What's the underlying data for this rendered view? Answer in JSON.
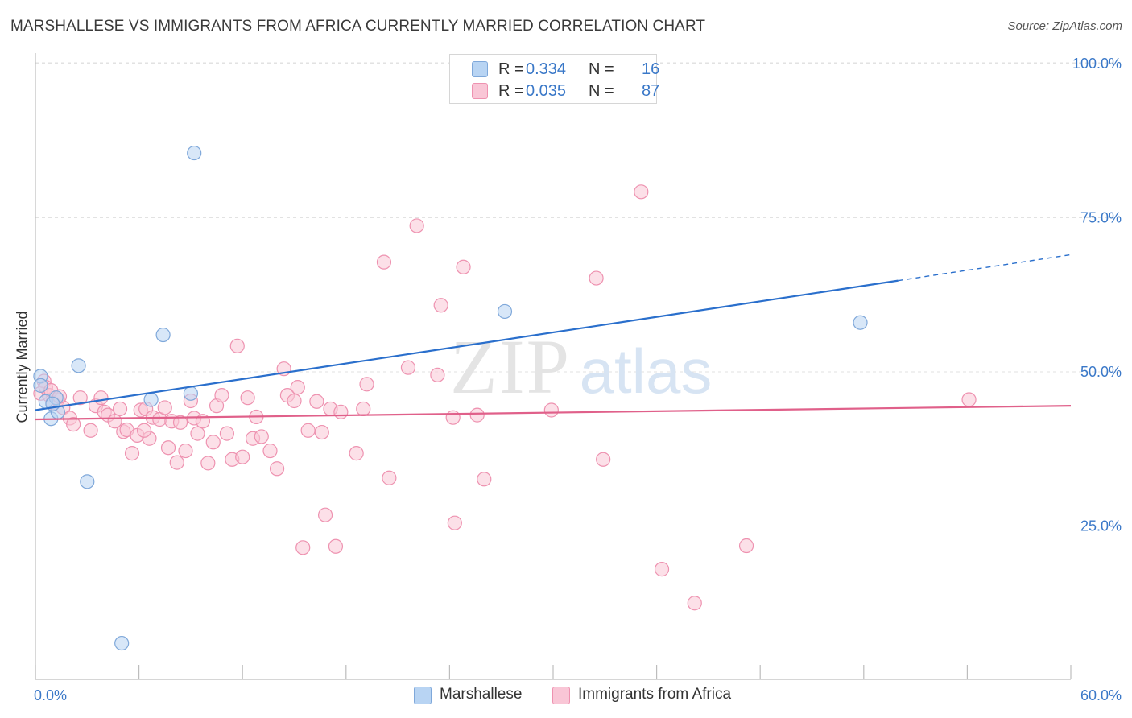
{
  "title": "MARSHALLESE VS IMMIGRANTS FROM AFRICA CURRENTLY MARRIED CORRELATION CHART",
  "source": "Source: ZipAtlas.com",
  "watermark": {
    "zip": "ZIP",
    "atlas": "atlas"
  },
  "legend": {
    "rows": [
      {
        "r_label": "R =",
        "r_value": "0.334",
        "n_label": "N =",
        "n_value": "16"
      },
      {
        "r_label": "R =",
        "r_value": "0.035",
        "n_label": "N =",
        "n_value": "87"
      }
    ]
  },
  "bottom_legend": {
    "marshallese": "Marshallese",
    "africa": "Immigrants from Africa"
  },
  "colors": {
    "blue_fill": "#b8d4f3",
    "blue_stroke": "#7fa8da",
    "blue_line": "#2a6fcc",
    "pink_fill": "#f9c6d6",
    "pink_stroke": "#ee92b0",
    "pink_line": "#e0608a",
    "axis_text": "#3a78c8",
    "grid": "#e2e2e2"
  },
  "chart_data": {
    "type": "scatter",
    "title": "MARSHALLESE VS IMMIGRANTS FROM AFRICA CURRENTLY MARRIED CORRELATION CHART",
    "xlabel": "",
    "ylabel": "Currently Married",
    "xlim": [
      0,
      60
    ],
    "ylim": [
      0,
      105
    ],
    "x_tick_labels": [
      {
        "value": 0,
        "label": "0.0%"
      },
      {
        "value": 60,
        "label": "60.0%"
      }
    ],
    "y_tick_labels": [
      {
        "value": 25,
        "label": "25.0%"
      },
      {
        "value": 50,
        "label": "50.0%"
      },
      {
        "value": 75,
        "label": "75.0%"
      },
      {
        "value": 100,
        "label": "100.0%"
      }
    ],
    "series": [
      {
        "name": "Marshallese",
        "r": 0.334,
        "n": 16,
        "trend": {
          "x0": 0,
          "y0": 43.8,
          "x1": 50,
          "y1": 64.8,
          "dashed_to_x": 60,
          "dashed_to_y": 69.0
        },
        "points": [
          [
            0.3,
            49.3
          ],
          [
            0.3,
            47.8
          ],
          [
            0.6,
            45.2
          ],
          [
            0.9,
            42.4
          ],
          [
            1.2,
            45.8
          ],
          [
            1.3,
            43.5
          ],
          [
            2.5,
            51.0
          ],
          [
            3.0,
            32.2
          ],
          [
            5.0,
            6.0
          ],
          [
            6.7,
            45.5
          ],
          [
            7.4,
            56.0
          ],
          [
            9.0,
            46.5
          ],
          [
            9.2,
            85.5
          ],
          [
            27.2,
            59.8
          ],
          [
            47.8,
            58.0
          ],
          [
            1.0,
            44.8
          ]
        ]
      },
      {
        "name": "Immigrants from Africa",
        "r": 0.035,
        "n": 87,
        "trend": {
          "x0": 0,
          "y0": 42.3,
          "x1": 60,
          "y1": 44.5
        },
        "points": [
          [
            0.3,
            46.5
          ],
          [
            0.5,
            48.5
          ],
          [
            0.6,
            47.5
          ],
          [
            0.8,
            46.2
          ],
          [
            1.0,
            45.0
          ],
          [
            1.3,
            45.5
          ],
          [
            1.6,
            44.2
          ],
          [
            2.0,
            42.5
          ],
          [
            2.2,
            41.5
          ],
          [
            2.6,
            45.8
          ],
          [
            3.2,
            40.5
          ],
          [
            3.5,
            44.5
          ],
          [
            3.8,
            45.8
          ],
          [
            4.0,
            43.5
          ],
          [
            4.2,
            43.0
          ],
          [
            4.6,
            42.0
          ],
          [
            4.9,
            44.0
          ],
          [
            5.1,
            40.3
          ],
          [
            5.3,
            40.6
          ],
          [
            5.6,
            36.8
          ],
          [
            5.9,
            39.7
          ],
          [
            6.1,
            43.8
          ],
          [
            6.4,
            44.0
          ],
          [
            6.6,
            39.2
          ],
          [
            6.8,
            42.6
          ],
          [
            7.2,
            42.3
          ],
          [
            7.5,
            44.2
          ],
          [
            7.7,
            37.7
          ],
          [
            7.9,
            42.0
          ],
          [
            8.2,
            35.3
          ],
          [
            8.4,
            41.8
          ],
          [
            8.7,
            37.2
          ],
          [
            9.0,
            45.3
          ],
          [
            9.2,
            42.5
          ],
          [
            9.4,
            40.0
          ],
          [
            9.7,
            42.0
          ],
          [
            10.0,
            35.2
          ],
          [
            10.3,
            38.6
          ],
          [
            10.5,
            44.5
          ],
          [
            10.8,
            46.2
          ],
          [
            11.1,
            40.0
          ],
          [
            11.4,
            35.8
          ],
          [
            11.7,
            54.2
          ],
          [
            12.0,
            36.2
          ],
          [
            12.3,
            45.8
          ],
          [
            12.6,
            39.2
          ],
          [
            12.8,
            42.7
          ],
          [
            13.1,
            39.5
          ],
          [
            13.6,
            37.2
          ],
          [
            14.0,
            34.3
          ],
          [
            14.4,
            50.5
          ],
          [
            14.6,
            46.2
          ],
          [
            15.0,
            45.3
          ],
          [
            15.2,
            47.5
          ],
          [
            15.5,
            21.5
          ],
          [
            15.8,
            40.5
          ],
          [
            16.3,
            45.2
          ],
          [
            16.6,
            40.2
          ],
          [
            16.8,
            26.8
          ],
          [
            17.1,
            44.0
          ],
          [
            17.4,
            21.7
          ],
          [
            17.7,
            43.5
          ],
          [
            18.6,
            36.8
          ],
          [
            19.0,
            44.0
          ],
          [
            19.2,
            48.0
          ],
          [
            20.2,
            67.8
          ],
          [
            20.5,
            32.8
          ],
          [
            21.6,
            50.7
          ],
          [
            22.1,
            73.7
          ],
          [
            23.3,
            49.5
          ],
          [
            23.5,
            60.8
          ],
          [
            24.2,
            42.6
          ],
          [
            24.3,
            25.5
          ],
          [
            24.8,
            67.0
          ],
          [
            25.6,
            43.0
          ],
          [
            26.0,
            32.6
          ],
          [
            29.9,
            43.8
          ],
          [
            32.5,
            65.2
          ],
          [
            32.9,
            35.8
          ],
          [
            35.1,
            79.2
          ],
          [
            36.3,
            18.0
          ],
          [
            38.2,
            12.5
          ],
          [
            41.2,
            21.8
          ],
          [
            54.1,
            45.5
          ],
          [
            0.9,
            47.0
          ],
          [
            1.4,
            46.0
          ],
          [
            6.3,
            40.5
          ]
        ]
      }
    ]
  }
}
